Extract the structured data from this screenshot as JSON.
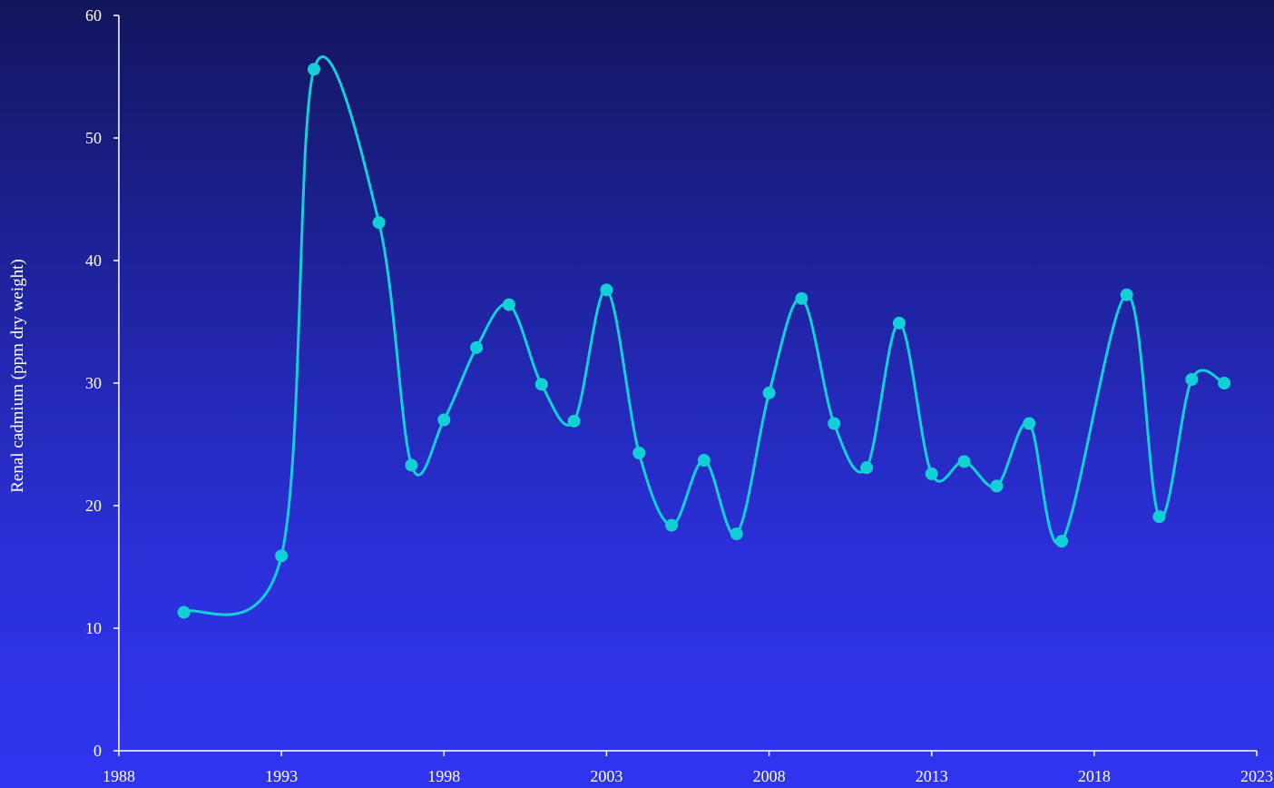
{
  "chart_data": {
    "type": "line",
    "title": "",
    "xlabel": "",
    "ylabel": "Renal cadmium (ppm dry weight)",
    "xlim": [
      1988,
      2023
    ],
    "ylim": [
      0,
      60
    ],
    "x_ticks": [
      "1988",
      "1993",
      "1998",
      "2003",
      "2008",
      "2013",
      "2018",
      "2023"
    ],
    "y_ticks": [
      "0",
      "10",
      "20",
      "30",
      "40",
      "50",
      "60"
    ],
    "grid": false,
    "legend": "none",
    "line_shape": "smooth",
    "series": [
      {
        "color": "#12d0d6",
        "x": [
          1990,
          1993,
          1994,
          1996,
          1997,
          1998,
          1999,
          2000,
          2001,
          2002,
          2003,
          2004,
          2005,
          2006,
          2007,
          2008,
          2009,
          2010,
          2011,
          2012,
          2013,
          2014,
          2015,
          2016,
          2017,
          2019,
          2020,
          2021,
          2022
        ],
        "y": [
          11.3,
          15.9,
          55.6,
          43.1,
          23.3,
          27.0,
          32.9,
          36.4,
          29.9,
          26.9,
          37.6,
          24.3,
          18.4,
          23.7,
          17.7,
          29.2,
          36.9,
          26.7,
          23.1,
          34.9,
          22.6,
          23.6,
          21.6,
          26.7,
          17.1,
          37.2,
          19.1,
          30.3,
          30.0
        ]
      }
    ]
  }
}
